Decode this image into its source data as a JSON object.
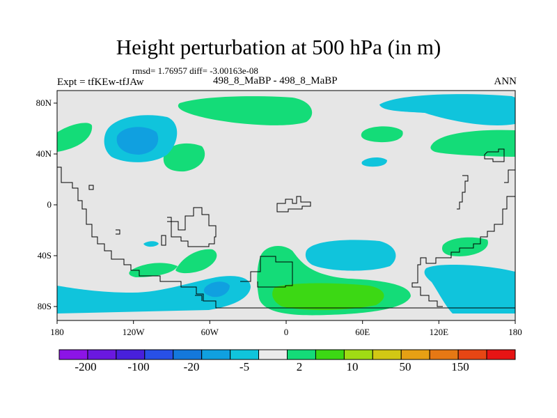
{
  "title": "Height perturbation at 500 hPa (in m)",
  "stats": "rmsd= 1.76957 diff= -3.00163e-08",
  "expt": "Expt = tfKEw-tfJAw",
  "period": "498_8_MaBP - 498_8_MaBP",
  "season": "ANN",
  "map": {
    "projection": "cylindrical equidistant",
    "x_ticks": [
      "180",
      "120W",
      "60W",
      "0",
      "60E",
      "120E",
      "180"
    ],
    "y_ticks": [
      "80N",
      "40N",
      "0",
      "40S",
      "80S"
    ],
    "background_color": "#e6e6e6"
  },
  "colorbar": {
    "colors": [
      "#8c14e6",
      "#6a18e0",
      "#4820dc",
      "#2850e6",
      "#1478dc",
      "#10a0e0",
      "#10c4dc",
      "#ebebeb",
      "#14dc78",
      "#3cd814",
      "#a0dc14",
      "#d2c814",
      "#e6a014",
      "#e67814",
      "#e64614",
      "#e61414"
    ],
    "labels": [
      "-200",
      "-100",
      "-20",
      "-5",
      "2",
      "10",
      "50",
      "150"
    ]
  }
}
